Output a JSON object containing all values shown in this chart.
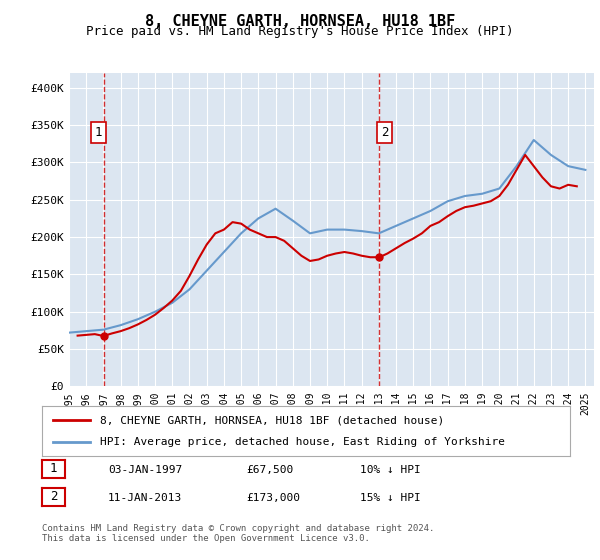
{
  "title": "8, CHEYNE GARTH, HORNSEA, HU18 1BF",
  "subtitle": "Price paid vs. HM Land Registry's House Price Index (HPI)",
  "ylabel_ticks": [
    "£0",
    "£50K",
    "£100K",
    "£150K",
    "£200K",
    "£250K",
    "£300K",
    "£350K",
    "£400K"
  ],
  "ytick_values": [
    0,
    50000,
    100000,
    150000,
    200000,
    250000,
    300000,
    350000,
    400000
  ],
  "ylim": [
    0,
    420000
  ],
  "xlim_start": 1995.0,
  "xlim_end": 2025.5,
  "background_color": "#dce6f1",
  "plot_bg_color": "#dce6f1",
  "grid_color": "#ffffff",
  "sale1": {
    "date": 1997.01,
    "price": 67500,
    "label": "1"
  },
  "sale2": {
    "date": 2013.03,
    "price": 173000,
    "label": "2"
  },
  "legend_line1": "8, CHEYNE GARTH, HORNSEA, HU18 1BF (detached house)",
  "legend_line2": "HPI: Average price, detached house, East Riding of Yorkshire",
  "annotation1_text": "1   03-JAN-1997          £67,500        10% ↓ HPI",
  "annotation2_text": "2   11-JAN-2013          £173,000      15% ↓ HPI",
  "footer": "Contains HM Land Registry data © Crown copyright and database right 2024.\nThis data is licensed under the Open Government Licence v3.0.",
  "red_color": "#cc0000",
  "blue_color": "#6699cc",
  "hpi_years": [
    1995,
    1996,
    1997,
    1998,
    1999,
    2000,
    2001,
    2002,
    2003,
    2004,
    2005,
    2006,
    2007,
    2008,
    2009,
    2010,
    2011,
    2012,
    2013,
    2014,
    2015,
    2016,
    2017,
    2018,
    2019,
    2020,
    2021,
    2022,
    2023,
    2024,
    2025
  ],
  "hpi_values": [
    72000,
    74000,
    76000,
    82000,
    90000,
    100000,
    112000,
    130000,
    155000,
    180000,
    205000,
    225000,
    238000,
    222000,
    205000,
    210000,
    210000,
    208000,
    205000,
    215000,
    225000,
    235000,
    248000,
    255000,
    258000,
    265000,
    295000,
    330000,
    310000,
    295000,
    290000
  ],
  "price_years": [
    1995.5,
    1996,
    1996.5,
    1997.0,
    1997.5,
    1998,
    1998.5,
    1999,
    1999.5,
    2000,
    2000.5,
    2001,
    2001.5,
    2002,
    2002.5,
    2003,
    2003.5,
    2004,
    2004.5,
    2005,
    2005.5,
    2006,
    2006.5,
    2007,
    2007.5,
    2008,
    2008.5,
    2009,
    2009.5,
    2010,
    2010.5,
    2011,
    2011.5,
    2012,
    2012.5,
    2013.03,
    2013.5,
    2014,
    2014.5,
    2015,
    2015.5,
    2016,
    2016.5,
    2017,
    2017.5,
    2018,
    2018.5,
    2019,
    2019.5,
    2020,
    2020.5,
    2021,
    2021.5,
    2022,
    2022.5,
    2023,
    2023.5,
    2024,
    2024.5
  ],
  "price_values": [
    68000,
    69000,
    70000,
    67500,
    71000,
    74000,
    78000,
    83000,
    89000,
    96000,
    105000,
    115000,
    128000,
    148000,
    170000,
    190000,
    205000,
    210000,
    220000,
    218000,
    210000,
    205000,
    200000,
    200000,
    195000,
    185000,
    175000,
    168000,
    170000,
    175000,
    178000,
    180000,
    178000,
    175000,
    173000,
    173000,
    178000,
    185000,
    192000,
    198000,
    205000,
    215000,
    220000,
    228000,
    235000,
    240000,
    242000,
    245000,
    248000,
    255000,
    270000,
    290000,
    310000,
    295000,
    280000,
    268000,
    265000,
    270000,
    268000
  ]
}
